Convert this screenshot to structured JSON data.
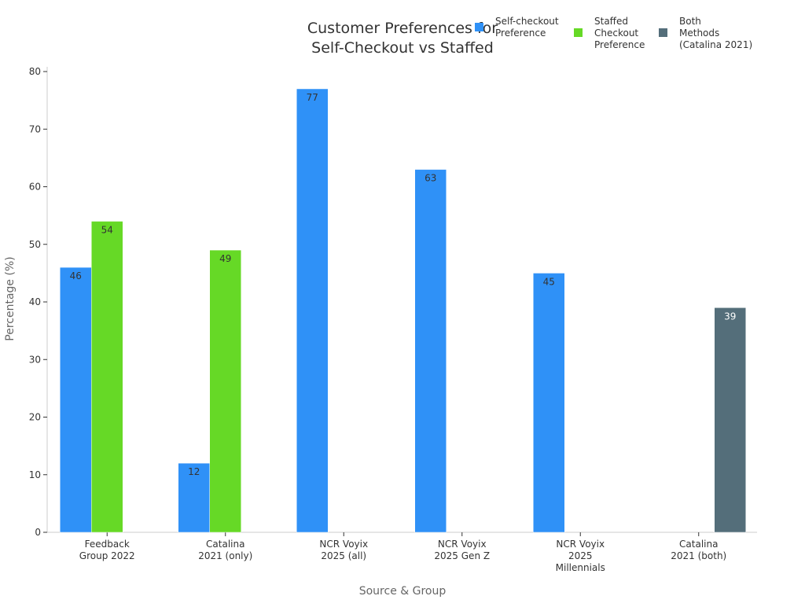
{
  "chart_data": {
    "type": "bar",
    "title": [
      "Customer Preferences for",
      "Self-Checkout vs Staffed"
    ],
    "xlabel": "Source & Group",
    "ylabel": "Percentage (%)",
    "ylim": [
      0,
      80
    ],
    "yticks": [
      0,
      10,
      20,
      30,
      40,
      50,
      60,
      70,
      80
    ],
    "grid": false,
    "legend_position": "top-right",
    "categories": [
      [
        "Feedback",
        "Group 2022"
      ],
      [
        "Catalina",
        "2021 (only)"
      ],
      [
        "NCR Voyix",
        "2025 (all)"
      ],
      [
        "NCR Voyix",
        "2025 Gen Z"
      ],
      [
        "NCR Voyix",
        "2025",
        "Millennials"
      ],
      [
        "Catalina",
        "2021 (both)"
      ]
    ],
    "series": [
      {
        "name": [
          "Self-checkout",
          "Preference"
        ],
        "color": "#2f91f7",
        "label_color": "#333333",
        "values": [
          46,
          12,
          77,
          63,
          45,
          null
        ]
      },
      {
        "name": [
          "Staffed",
          "Checkout",
          "Preference"
        ],
        "color": "#66d926",
        "label_color": "#333333",
        "values": [
          54,
          49,
          null,
          null,
          null,
          null
        ]
      },
      {
        "name": [
          "Both",
          "Methods",
          "(Catalina 2021)"
        ],
        "color": "#546e7a",
        "label_color": "#ffffff",
        "values": [
          null,
          null,
          null,
          null,
          null,
          39
        ]
      }
    ]
  }
}
